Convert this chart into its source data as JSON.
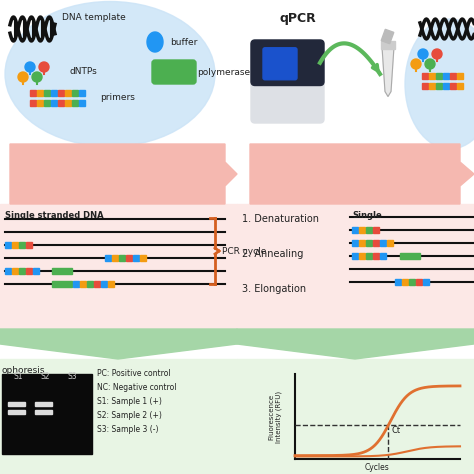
{
  "title": "qPCR",
  "bg_color": "#ffffff",
  "light_blue_bg": "#ddeeff",
  "light_pink_bg": "#fce8e6",
  "light_green_bg": "#e8f5e4",
  "orange_bracket": "#d45f20",
  "green_arrow_color": "#5cb85c",
  "pcr_cycle_label": "PCR cycle",
  "steps": [
    "1. Denaturation",
    "2. Annealing",
    "3. Elongation"
  ],
  "single_stranded_label": "Single stranded DNA",
  "single_label_right": "Single",
  "gel_labels": [
    "S1",
    "S2",
    "S3"
  ],
  "legend_lines": [
    "PC: Positive control",
    "NC: Negative control",
    "S1: Sample 1 (+)",
    "S2: Sample 2 (+)",
    "S3: Sample 3 (-)"
  ],
  "phoresis_label": "ophoresis",
  "ylabel_graph": "Fluorescence\nIntensity (RFU)",
  "xlabel_graph": "Cycles",
  "ct_label": "Ct",
  "polymerase_color": "#4caf50",
  "buffer_color": "#2196f3",
  "dntp_colors_top": [
    "#2196f3",
    "#e74c3c",
    "#f39c12",
    "#4caf50"
  ],
  "primer_stripe_colors": [
    "#e74c3c",
    "#f39c12",
    "#4caf50",
    "#2196f3",
    "#e74c3c",
    "#f39c12",
    "#4caf50",
    "#2196f3"
  ],
  "curve_color": "#e07030",
  "dashed_color": "#444444",
  "strand_color": "#111111",
  "pink_arrow_color": "#f5b8b0",
  "green_down_arrow_color": "#a5d6a7"
}
